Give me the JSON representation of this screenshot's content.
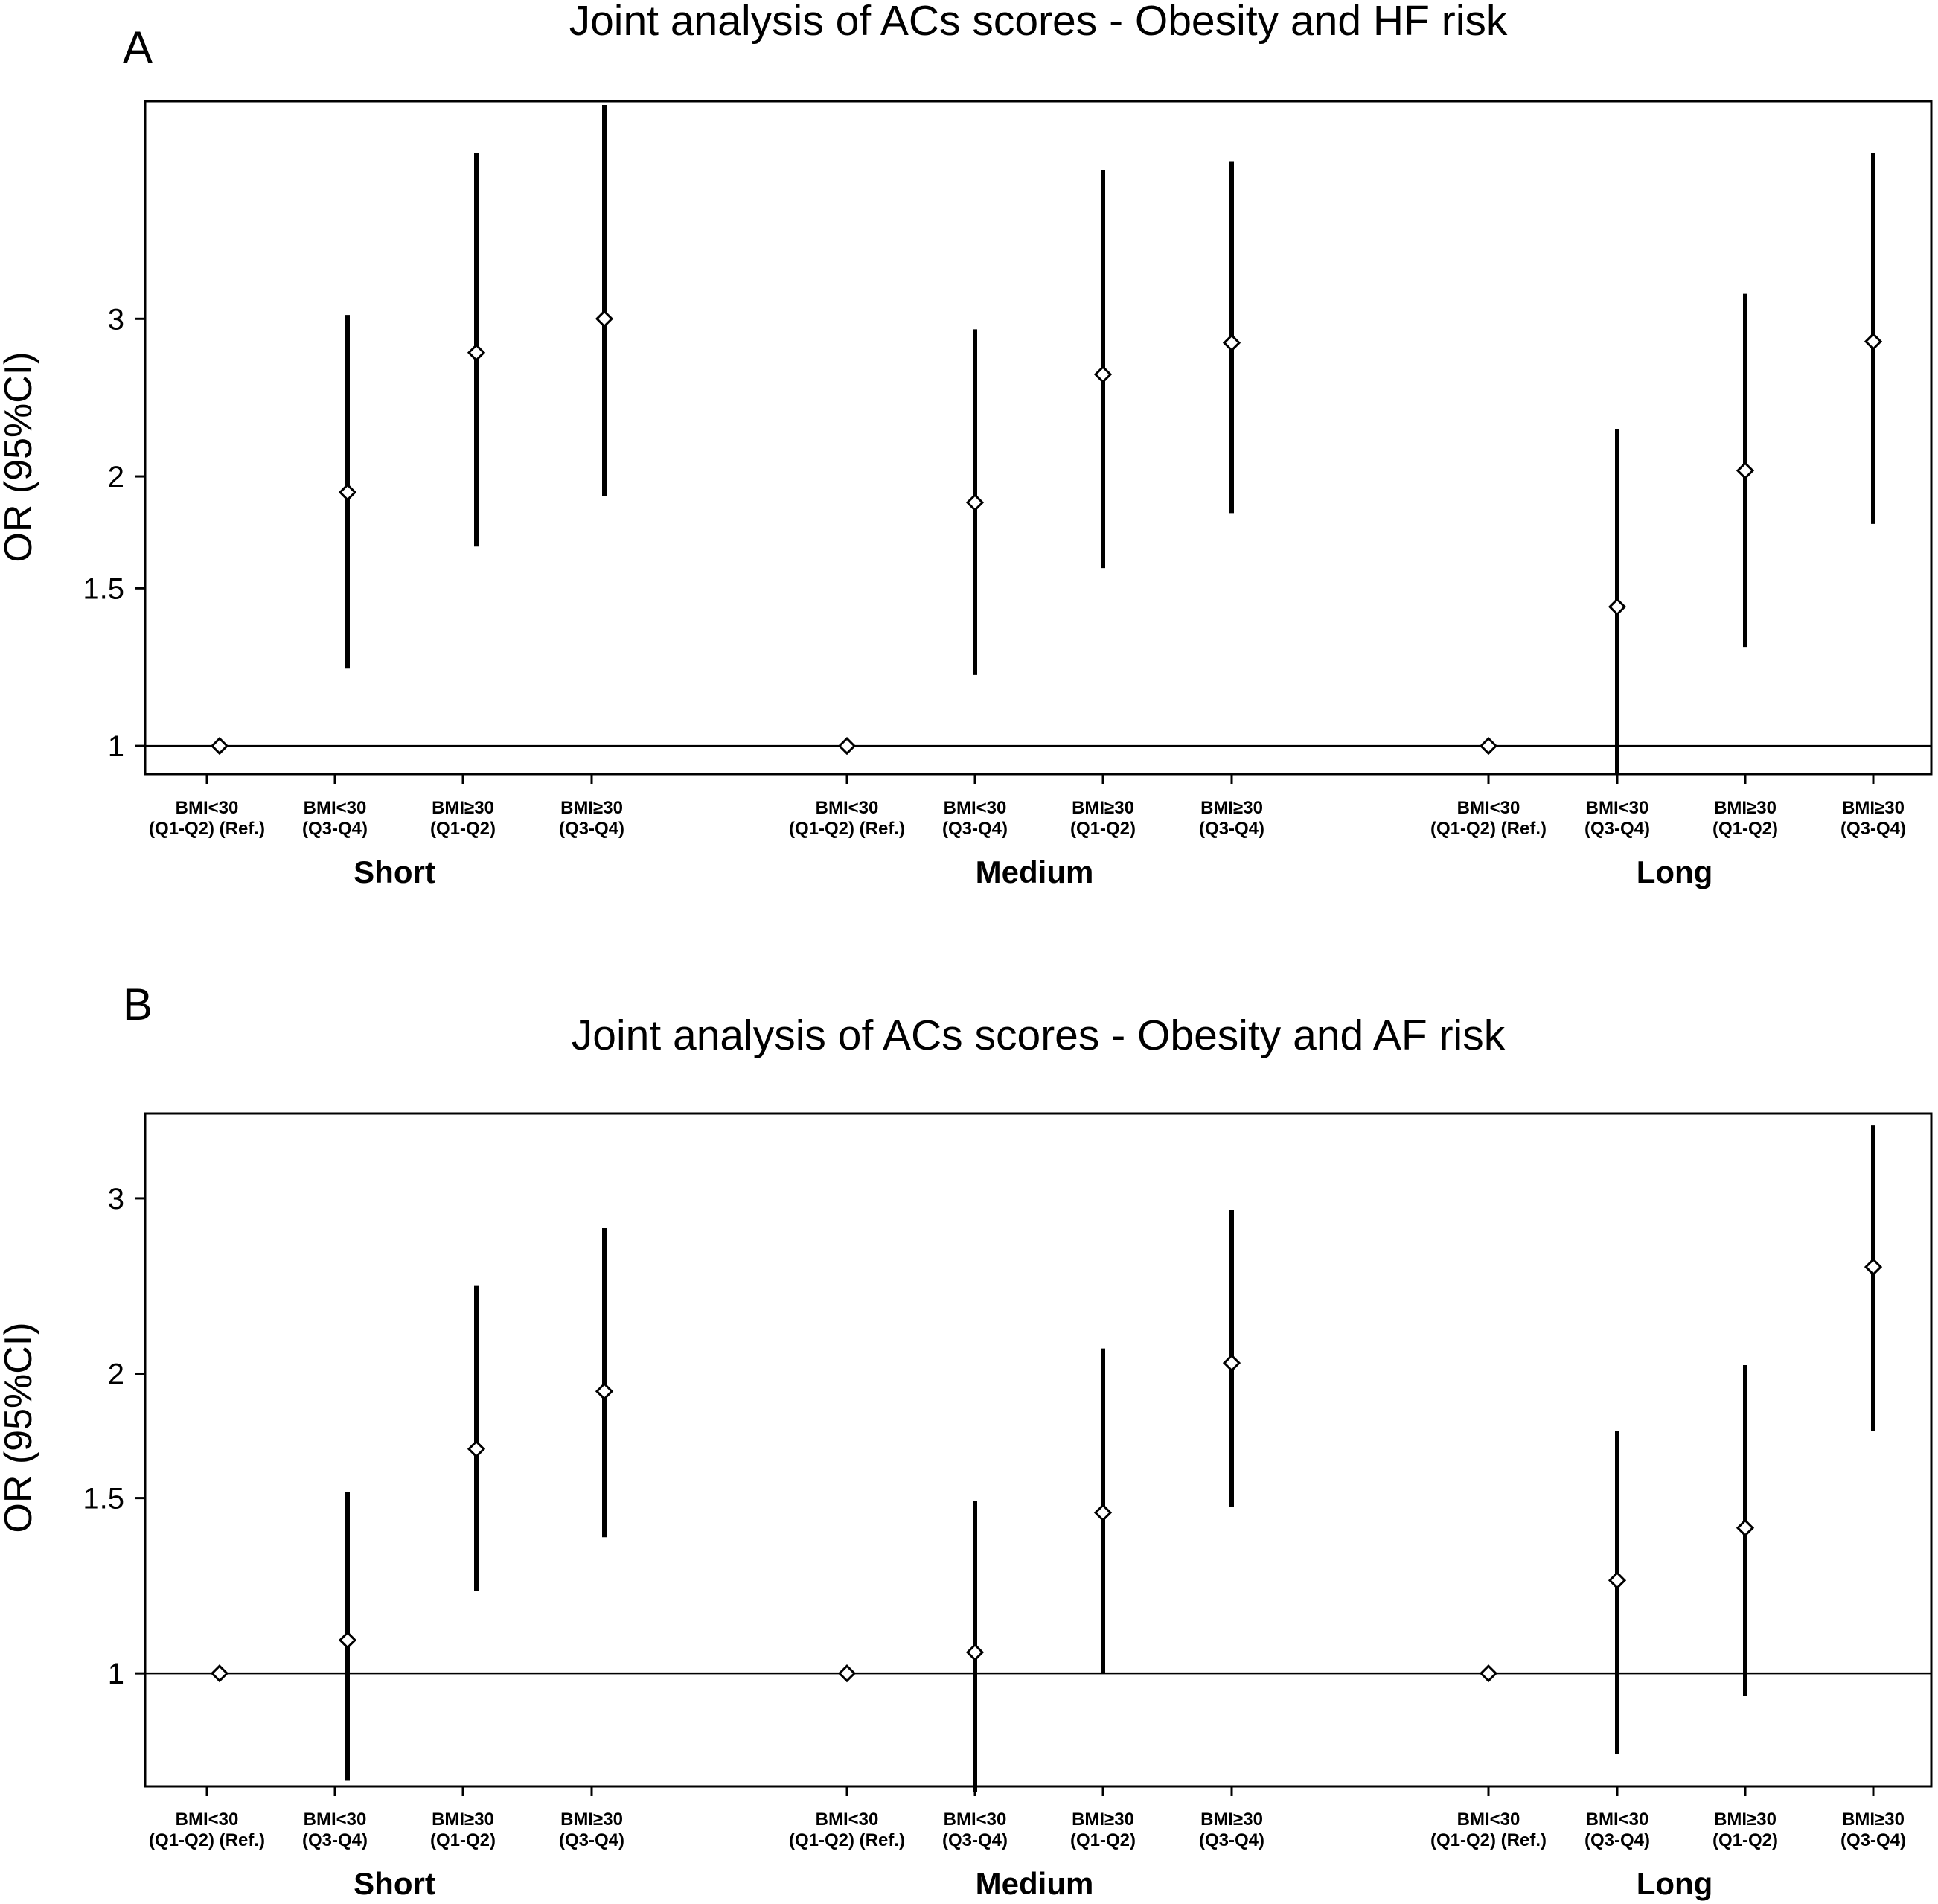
{
  "panels": [
    {
      "letter": "A",
      "chart_data": {
        "type": "scatter",
        "title": "Joint analysis of ACs scores - Obesity and HF risk",
        "ylabel": "OR (95%CI)",
        "xlabel": "",
        "yscale": "log",
        "ylim": [
          0.93,
          5.25
        ],
        "yticks": [
          1,
          1.5,
          2,
          3
        ],
        "ytick_labels": [
          "1",
          "1.5",
          "2",
          "3"
        ],
        "reference_line": 1,
        "groups": [
          "Short",
          "Medium",
          "Long"
        ],
        "categories": [
          "BMI<30\n(Q1-Q2) (Ref.)",
          "BMI<30\n(Q3-Q4)",
          "BMI≥30\n(Q1-Q2)",
          "BMI≥30\n(Q3-Q4)"
        ],
        "series": [
          {
            "group": "Short",
            "or": [
              1,
              1.92,
              2.75,
              3.0
            ],
            "ci_low": [
              null,
              1.22,
              1.67,
              1.9
            ],
            "ci_high": [
              null,
              3.03,
              4.6,
              5.2
            ]
          },
          {
            "group": "Medium",
            "or": [
              1,
              1.87,
              2.6,
              2.82
            ],
            "ci_low": [
              null,
              1.2,
              1.58,
              1.82
            ],
            "ci_high": [
              null,
              2.92,
              4.4,
              4.5
            ]
          },
          {
            "group": "Long",
            "or": [
              1,
              1.43,
              2.03,
              2.83
            ],
            "ci_low": [
              null,
              0.93,
              1.29,
              1.77
            ],
            "ci_high": [
              null,
              2.26,
              3.2,
              4.6
            ]
          }
        ]
      }
    },
    {
      "letter": "B",
      "chart_data": {
        "type": "scatter",
        "title": "Joint analysis of ACs scores - Obesity and AF risk",
        "ylabel": "OR (95%CI)",
        "xlabel": "",
        "yscale": "log",
        "ylim": [
          0.77,
          3.65
        ],
        "yticks": [
          1,
          1.5,
          2,
          3
        ],
        "ytick_labels": [
          "1",
          "1.5",
          "2",
          "3"
        ],
        "reference_line": 1,
        "groups": [
          "Short",
          "Medium",
          "Long"
        ],
        "categories": [
          "BMI<30\n(Q1-Q2) (Ref.)",
          "BMI<30\n(Q3-Q4)",
          "BMI≥30\n(Q1-Q2)",
          "BMI≥30\n(Q3-Q4)"
        ],
        "series": [
          {
            "group": "Short",
            "or": [
              1,
              1.08,
              1.68,
              1.92
            ],
            "ci_low": [
              null,
              0.78,
              1.21,
              1.37
            ],
            "ci_high": [
              null,
              1.52,
              2.45,
              2.8
            ]
          },
          {
            "group": "Medium",
            "or": [
              1,
              1.05,
              1.45,
              2.05
            ],
            "ci_low": [
              null,
              0.76,
              1.0,
              1.47
            ],
            "ci_high": [
              null,
              1.49,
              2.12,
              2.92
            ]
          },
          {
            "group": "Long",
            "or": [
              1,
              1.24,
              1.4,
              2.56
            ],
            "ci_low": [
              null,
              0.83,
              0.95,
              1.75
            ],
            "ci_high": [
              null,
              1.75,
              2.04,
              3.55
            ]
          }
        ]
      }
    }
  ]
}
